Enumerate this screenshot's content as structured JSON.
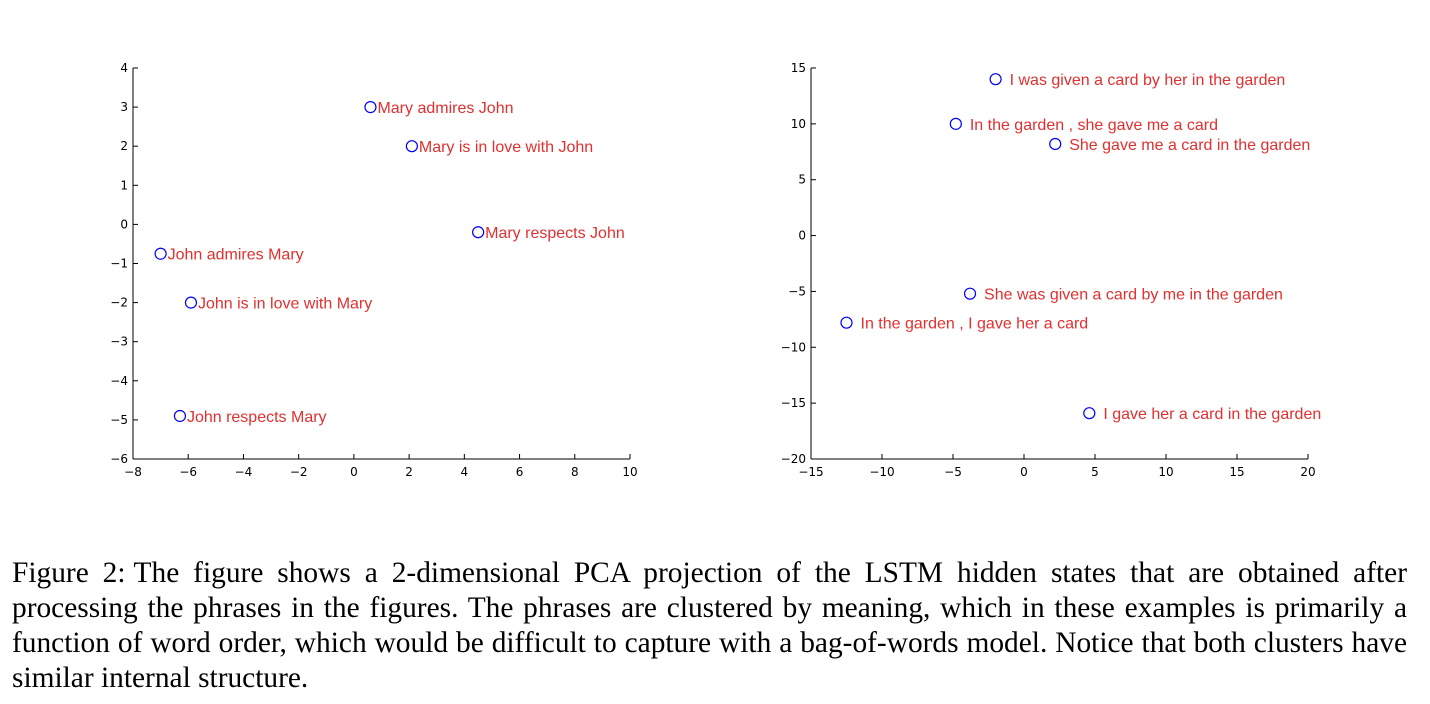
{
  "chart_data": [
    {
      "type": "scatter",
      "title": "",
      "xlabel": "",
      "ylabel": "",
      "xlim": [
        -8,
        10
      ],
      "ylim": [
        -6,
        4
      ],
      "xticks": [
        -8,
        -6,
        -4,
        -2,
        0,
        2,
        4,
        6,
        8,
        10
      ],
      "yticks": [
        -6,
        -5,
        -4,
        -3,
        -2,
        -1,
        0,
        1,
        2,
        3,
        4
      ],
      "marker_color": "#0000ff",
      "label_color": "#e03030",
      "points": [
        {
          "x": 0.6,
          "y": 3.0,
          "label": "Mary admires John"
        },
        {
          "x": 2.1,
          "y": 2.0,
          "label": "Mary is in love with John"
        },
        {
          "x": 4.5,
          "y": -0.2,
          "label": "Mary respects John"
        },
        {
          "x": -7.0,
          "y": -0.75,
          "label": "John admires Mary"
        },
        {
          "x": -5.9,
          "y": -2.0,
          "label": "John is in love with Mary"
        },
        {
          "x": -6.3,
          "y": -4.9,
          "label": "John respects Mary"
        }
      ]
    },
    {
      "type": "scatter",
      "title": "",
      "xlabel": "",
      "ylabel": "",
      "xlim": [
        -15,
        20
      ],
      "ylim": [
        -20,
        15
      ],
      "xticks": [
        -15,
        -10,
        -5,
        0,
        5,
        10,
        15,
        20
      ],
      "yticks": [
        -20,
        -15,
        -10,
        -5,
        0,
        5,
        10,
        15
      ],
      "marker_color": "#0000ff",
      "label_color": "#e03030",
      "points": [
        {
          "x": -2.0,
          "y": 14.0,
          "label": "I was given a card by her in the garden"
        },
        {
          "x": -4.8,
          "y": 10.0,
          "label": "In the garden , she gave me a card"
        },
        {
          "x": 2.2,
          "y": 8.2,
          "label": "She gave me a card in the garden"
        },
        {
          "x": -3.8,
          "y": -5.2,
          "label": "She was given a card by me in the garden"
        },
        {
          "x": -12.5,
          "y": -7.8,
          "label": "In the garden , I gave her a card"
        },
        {
          "x": 4.6,
          "y": -15.9,
          "label": "I gave her a card in the garden"
        }
      ]
    }
  ],
  "caption": {
    "label": "Figure 2:",
    "text": "The figure shows a 2-dimensional PCA projection of the LSTM hidden states that are obtained after processing the phrases in the figures. The phrases are clustered by meaning, which in these examples is primarily a function of word order, which would be difficult to capture with a bag-of-words model. Notice that both clusters have similar internal structure."
  }
}
